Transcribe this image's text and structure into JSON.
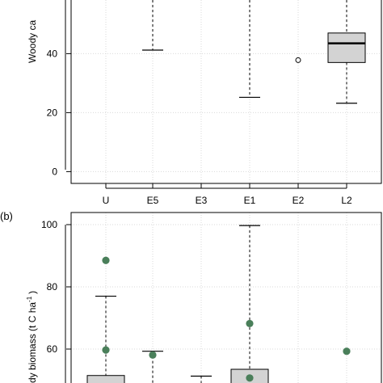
{
  "panel_a": {
    "ylabel_visible": "Woody ca"
  },
  "panel_b": {
    "label": "(b)",
    "ylabel_visible": "dy biomass (t C ha",
    "ylabel_sup": "-1",
    "ylabel_close": ")"
  },
  "colors": {
    "box_fill": "#d3d3d3",
    "point": "#4a7f5a",
    "grid": "#d9d9d9"
  },
  "chart_data": [
    {
      "type": "box",
      "panel": "a",
      "categories": [
        "U",
        "E5",
        "E3",
        "E1",
        "E2",
        "L2"
      ],
      "ylim": [
        -4,
        56
      ],
      "yticks": [
        0,
        20,
        40
      ],
      "grid": true,
      "elements": {
        "E5": {
          "whisker_low": 41.2,
          "whisker_high": 60
        },
        "E1": {
          "whisker_low": 25.2,
          "whisker_high": 60
        },
        "E2": {
          "outliers": [
            37.8
          ]
        },
        "L2": {
          "q1": 37,
          "median": 43.5,
          "q3": 47,
          "whisker_low": 23.2,
          "whisker_high": 60
        }
      }
    },
    {
      "type": "box",
      "panel": "b",
      "categories": [
        "U",
        "E5",
        "E3",
        "E1",
        "E2",
        "L2"
      ],
      "ylim": [
        40,
        104
      ],
      "yticks": [
        60,
        80,
        100
      ],
      "grid": true,
      "elements": {
        "U": {
          "q3": 51.5,
          "whisker_high": 77,
          "points": [
            88.5,
            59.7
          ]
        },
        "E5": {
          "whisker_high": 59.3,
          "points": [
            58.1
          ]
        },
        "E3": {
          "whisker_high": 51.3
        },
        "E1": {
          "q3": 53.5,
          "whisker_high": 99.7,
          "points": [
            68.2,
            50.7
          ]
        },
        "L2": {
          "points": [
            59.3
          ]
        }
      }
    }
  ]
}
